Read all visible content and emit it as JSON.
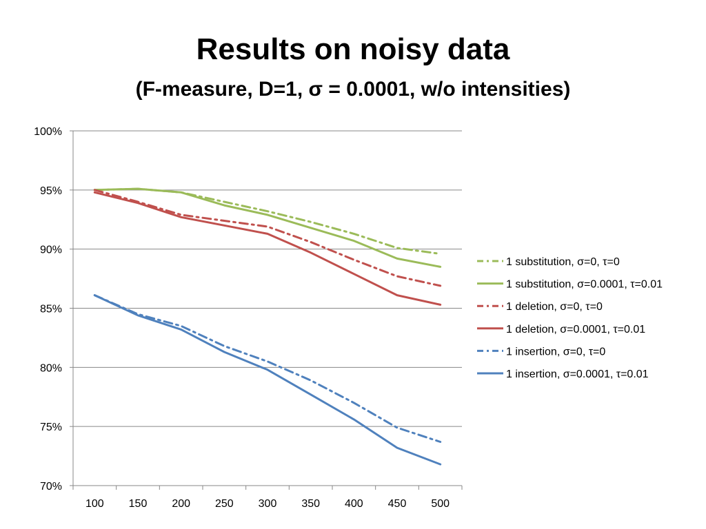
{
  "slide": {
    "title": "Results on noisy data",
    "subtitle": "(F-measure, D=1, σ = 0.0001, w/o intensities)"
  },
  "chart_data": {
    "type": "line",
    "x": [
      100,
      150,
      200,
      250,
      300,
      350,
      400,
      450,
      500
    ],
    "x_tick_labels": [
      "100",
      "150",
      "200",
      "250",
      "300",
      "350",
      "400",
      "450",
      "500"
    ],
    "ylim": [
      70,
      100
    ],
    "y_tick_labels": [
      "70%",
      "75%",
      "80%",
      "85%",
      "90%",
      "95%",
      "100%"
    ],
    "y_ticks": [
      70,
      75,
      80,
      85,
      90,
      95,
      100
    ],
    "grid": "horizontal",
    "legend_position": "right",
    "series": [
      {
        "name": "1 substitution, σ=0, τ=0",
        "color": "#9BBB59",
        "style": "dashdot",
        "values": [
          95.0,
          95.1,
          94.8,
          94.0,
          93.2,
          92.3,
          91.3,
          90.1,
          89.6
        ]
      },
      {
        "name": "1 substitution, σ=0.0001, τ=0.01",
        "color": "#9BBB59",
        "style": "solid",
        "values": [
          95.0,
          95.1,
          94.8,
          93.7,
          92.9,
          91.8,
          90.7,
          89.2,
          88.5
        ]
      },
      {
        "name": "1 deletion, σ=0, τ=0",
        "color": "#C0504D",
        "style": "dashdot",
        "values": [
          95.0,
          94.0,
          92.9,
          92.4,
          91.9,
          90.6,
          89.1,
          87.7,
          86.9
        ]
      },
      {
        "name": "1 deletion, σ=0.0001, τ=0.01",
        "color": "#C0504D",
        "style": "solid",
        "values": [
          94.8,
          93.9,
          92.7,
          92.0,
          91.3,
          89.7,
          87.9,
          86.1,
          85.3
        ]
      },
      {
        "name": "1 insertion, σ=0, τ=0",
        "color": "#4F81BD",
        "style": "dashdot",
        "values": [
          86.1,
          84.5,
          83.5,
          81.8,
          80.5,
          78.9,
          77.0,
          74.9,
          73.7
        ]
      },
      {
        "name": "1 insertion, σ=0.0001, τ=0.01",
        "color": "#4F81BD",
        "style": "solid",
        "values": [
          86.1,
          84.4,
          83.2,
          81.3,
          79.8,
          77.7,
          75.6,
          73.2,
          71.8
        ]
      }
    ]
  }
}
